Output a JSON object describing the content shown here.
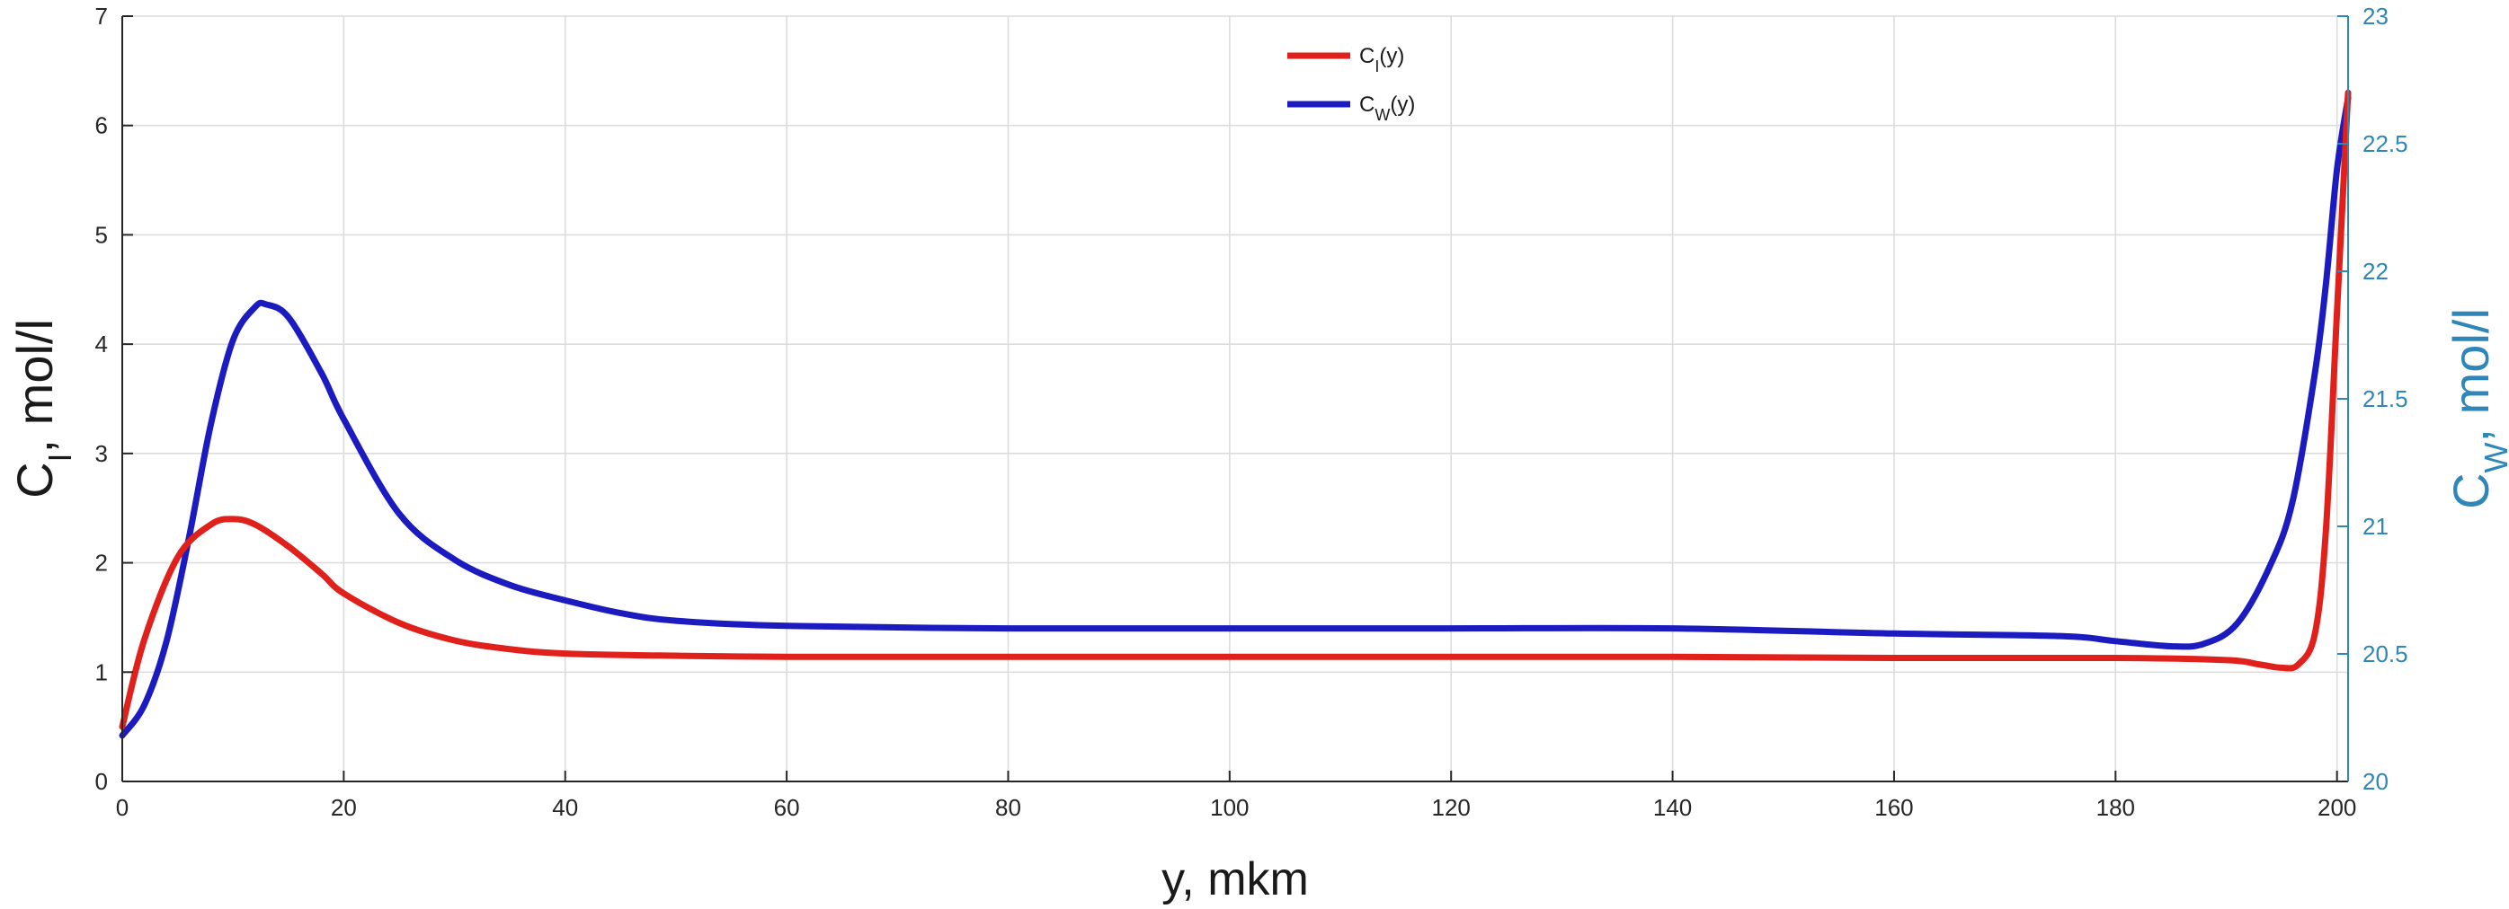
{
  "chart_data": {
    "type": "line",
    "xlabel": "y, mkm",
    "ylabel_left": "C_I, mol/l",
    "ylabel_right": "C_W, mol/l",
    "xlim": [
      0,
      201
    ],
    "ylim_left": [
      0,
      7
    ],
    "ylim_right": [
      20,
      23
    ],
    "x_ticks": [
      "0",
      "20",
      "40",
      "60",
      "80",
      "100",
      "120",
      "140",
      "160",
      "180",
      "200"
    ],
    "y_left_ticks": [
      "0",
      "1",
      "2",
      "3",
      "4",
      "5",
      "6",
      "7"
    ],
    "y_right_ticks": [
      "20",
      "20.5",
      "21",
      "21.5",
      "22",
      "22.5",
      "23"
    ],
    "grid": true,
    "legend_position": "top-center",
    "series": [
      {
        "name": "C_I(y)",
        "legend_label": "C",
        "legend_sub": "I",
        "legend_suffix": "(y)",
        "axis": "left",
        "color": "#e0201b",
        "x": [
          0,
          2,
          5,
          8,
          10,
          12,
          15,
          18,
          20,
          25,
          30,
          35,
          40,
          50,
          60,
          80,
          100,
          120,
          140,
          160,
          180,
          190,
          193,
          195,
          196.5,
          198,
          199,
          200,
          201
        ],
        "y": [
          0.5,
          1.3,
          2.05,
          2.35,
          2.4,
          2.35,
          2.15,
          1.9,
          1.72,
          1.45,
          1.29,
          1.21,
          1.17,
          1.15,
          1.14,
          1.14,
          1.14,
          1.14,
          1.14,
          1.13,
          1.13,
          1.11,
          1.07,
          1.04,
          1.07,
          1.35,
          2.3,
          4.3,
          6.3
        ]
      },
      {
        "name": "C_W(y)",
        "legend_label": "C",
        "legend_sub": "W",
        "legend_suffix": "(y)",
        "axis": "right",
        "color": "#1b1bbf",
        "x": [
          0,
          2,
          4,
          6,
          8,
          10,
          12,
          13,
          15,
          18,
          20,
          25,
          30,
          35,
          40,
          45,
          50,
          60,
          80,
          100,
          120,
          140,
          160,
          175,
          180,
          185,
          188,
          191,
          194,
          196,
          198,
          199,
          200,
          201
        ],
        "y": [
          20.18,
          20.3,
          20.55,
          20.95,
          21.4,
          21.73,
          21.86,
          21.87,
          21.82,
          21.6,
          21.42,
          21.05,
          20.87,
          20.77,
          20.71,
          20.66,
          20.63,
          20.61,
          20.6,
          20.6,
          20.6,
          20.6,
          20.58,
          20.57,
          20.55,
          20.53,
          20.54,
          20.62,
          20.85,
          21.1,
          21.6,
          21.95,
          22.4,
          22.68
        ]
      }
    ]
  }
}
